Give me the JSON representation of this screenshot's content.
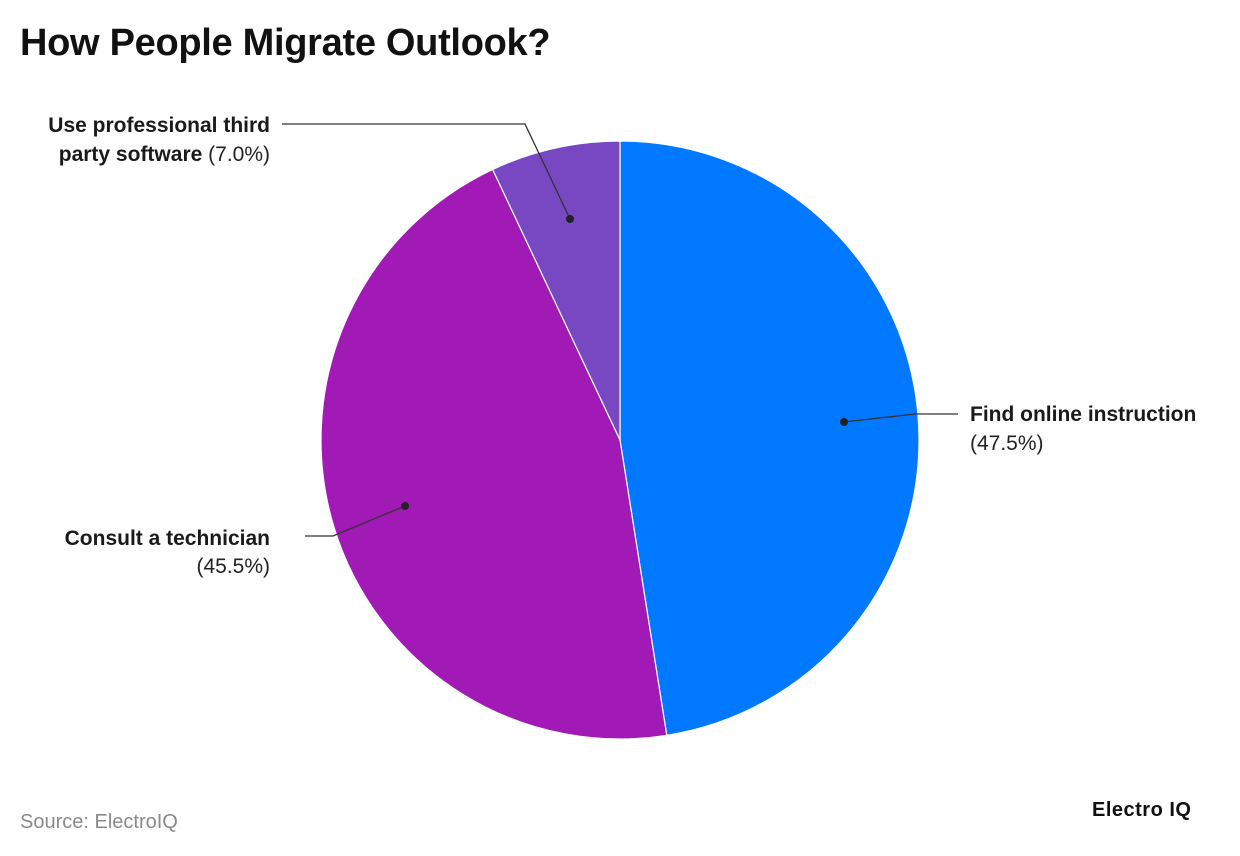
{
  "title": "How People Migrate Outlook?",
  "source": "Source: ElectroIQ",
  "brand": "Electro IQ",
  "chart_data": {
    "type": "pie",
    "title": "How People Migrate Outlook?",
    "slices": [
      {
        "label": "Find online instruction",
        "value": 47.5,
        "display": "(47.5%)",
        "color": "#0078ff"
      },
      {
        "label": "Consult a technician",
        "value": 45.5,
        "display": "(45.5%)",
        "color": "#a11ab5"
      },
      {
        "label": "Use professional third party software",
        "value": 7.0,
        "display": "(7.0%)",
        "color": "#7847c2"
      }
    ],
    "legend": "none",
    "labels": "outside-with-leaders"
  }
}
